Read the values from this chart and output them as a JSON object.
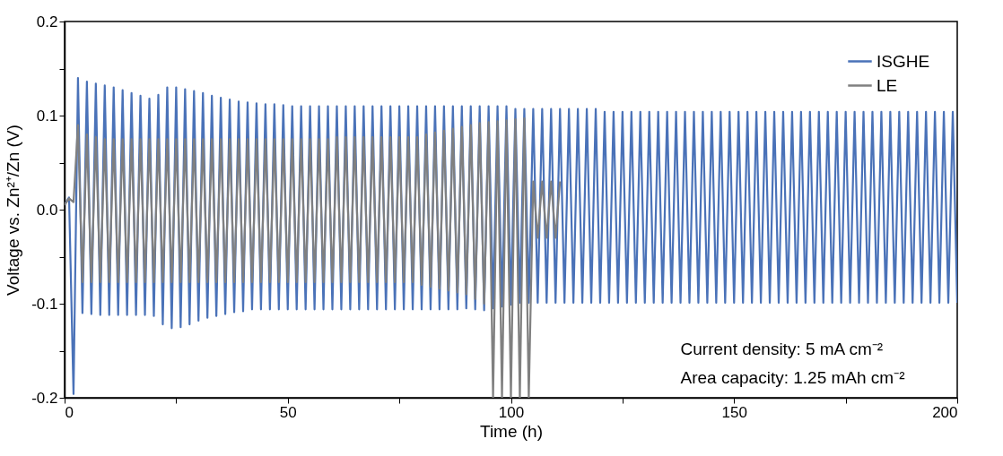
{
  "chart_data": {
    "type": "line",
    "xlabel": "Time (h)",
    "ylabel": "Voltage vs. Zn²⁺/Zn (V)",
    "xlim": [
      0,
      200
    ],
    "ylim": [
      -0.2,
      0.2
    ],
    "xticks": [
      0,
      {
        "value": 25,
        "label": null
      },
      50,
      {
        "value": 75,
        "label": null
      },
      100,
      {
        "value": 125,
        "label": null
      },
      150,
      {
        "value": 175,
        "label": null
      },
      200
    ],
    "yticks": [
      -0.2,
      {
        "value": -0.15,
        "label": null
      },
      -0.1,
      {
        "value": -0.05,
        "label": null
      },
      {
        "value": 0,
        "label": "0.0"
      },
      {
        "value": 0.05,
        "label": null
      },
      0.1,
      {
        "value": 0.15,
        "label": null
      },
      0.2
    ],
    "grid": false,
    "legend": "top right",
    "annotations": [
      "Current density: 5 mA cm⁻²",
      "Area capacity: 1.25 mAh cm⁻²"
    ],
    "series": [
      {
        "name": "ISGHE",
        "color": "#4a72b8",
        "x": [
          0,
          1,
          2,
          3,
          4,
          5,
          6,
          7,
          8,
          9,
          10,
          11,
          12,
          13,
          14,
          15,
          16,
          17,
          18,
          19,
          20,
          21,
          22,
          23,
          24,
          25,
          26,
          27,
          28,
          29,
          30,
          31,
          32,
          33,
          34,
          35,
          36,
          37,
          38,
          39,
          40,
          41,
          42,
          43,
          44,
          45,
          46,
          47,
          48,
          49,
          50,
          51,
          52,
          53,
          54,
          55,
          56,
          57,
          58,
          59,
          60,
          61,
          62,
          63,
          64,
          65,
          66,
          67,
          68,
          69,
          70,
          71,
          72,
          73,
          74,
          75,
          76,
          77,
          78,
          79,
          80,
          81,
          82,
          83,
          84,
          85,
          86,
          87,
          88,
          89,
          90,
          91,
          92,
          93,
          94,
          95,
          96,
          97,
          98,
          99,
          100,
          101,
          102,
          103,
          104,
          105,
          106,
          107,
          108,
          109,
          110,
          111,
          112,
          113,
          114,
          115,
          116,
          117,
          118,
          119,
          120,
          121,
          122,
          123,
          124,
          125,
          126,
          127,
          128,
          129,
          130,
          131,
          132,
          133,
          134,
          135,
          136,
          137,
          138,
          139,
          140,
          141,
          142,
          143,
          144,
          145,
          146,
          147,
          148,
          149,
          150,
          151,
          152,
          153,
          154,
          155,
          156,
          157,
          158,
          159,
          160,
          161,
          162,
          163,
          164,
          165,
          166,
          167,
          168,
          169,
          170,
          171,
          172,
          173,
          174,
          175,
          176,
          177,
          178,
          179,
          180,
          181,
          182,
          183,
          184,
          185,
          186,
          187,
          188,
          189,
          190,
          191,
          192,
          193,
          194,
          195,
          196,
          197,
          198,
          199,
          200
        ],
        "values": [
          0.005,
          0.013,
          -0.196,
          0.14,
          -0.11,
          0.136,
          -0.111,
          0.134,
          -0.112,
          0.132,
          -0.112,
          0.13,
          -0.112,
          0.127,
          -0.112,
          0.124,
          -0.112,
          0.121,
          -0.112,
          0.118,
          -0.113,
          0.122,
          -0.122,
          0.13,
          -0.126,
          0.13,
          -0.125,
          0.128,
          -0.122,
          0.126,
          -0.118,
          0.124,
          -0.115,
          0.121,
          -0.113,
          0.119,
          -0.111,
          0.117,
          -0.109,
          0.115,
          -0.108,
          0.114,
          -0.106,
          0.113,
          -0.106,
          0.112,
          -0.106,
          0.112,
          -0.106,
          0.111,
          -0.106,
          0.11,
          -0.106,
          0.11,
          -0.106,
          0.11,
          -0.106,
          0.11,
          -0.106,
          0.11,
          -0.106,
          0.11,
          -0.106,
          0.11,
          -0.106,
          0.11,
          -0.106,
          0.11,
          -0.106,
          0.11,
          -0.106,
          0.11,
          -0.106,
          0.11,
          -0.106,
          0.11,
          -0.106,
          0.11,
          -0.106,
          0.11,
          -0.106,
          0.11,
          -0.106,
          0.11,
          -0.106,
          0.11,
          -0.106,
          0.11,
          -0.106,
          0.11,
          -0.105,
          0.11,
          -0.106,
          0.11,
          -0.107,
          0.11,
          -0.105,
          0.11,
          -0.103,
          0.11,
          -0.101,
          0.107,
          -0.099,
          0.107,
          -0.099,
          0.107,
          -0.099,
          0.107,
          -0.099,
          0.107,
          -0.099,
          0.107,
          -0.099,
          0.107,
          -0.099,
          0.107,
          -0.099,
          0.107,
          -0.099,
          0.107,
          -0.099,
          0.104,
          -0.099,
          0.104,
          -0.099,
          0.104,
          -0.099,
          0.104,
          -0.099,
          0.104,
          -0.099,
          0.104,
          -0.099,
          0.104,
          -0.099,
          0.104,
          -0.099,
          0.104,
          -0.099,
          0.104,
          -0.099,
          0.104,
          -0.099,
          0.104,
          -0.099,
          0.104,
          -0.099,
          0.104,
          -0.099,
          0.104,
          -0.099,
          0.104,
          -0.099,
          0.104,
          -0.099,
          0.104,
          -0.099,
          0.104,
          -0.099,
          0.104,
          -0.099,
          0.104,
          -0.099,
          0.104,
          -0.099,
          0.104,
          -0.099,
          0.104,
          -0.099,
          0.104,
          -0.099,
          0.104,
          -0.099,
          0.104,
          -0.099,
          0.104,
          -0.099,
          0.104,
          -0.099,
          0.104,
          -0.099,
          0.104,
          -0.099,
          0.104,
          -0.099,
          0.104,
          -0.099,
          0.104,
          -0.099,
          0.104,
          -0.099,
          0.104,
          -0.099,
          0.104,
          -0.099,
          0.104,
          -0.099,
          0.104,
          -0.099,
          0.104,
          -0.099
        ]
      },
      {
        "name": "LE",
        "color": "#808080",
        "x": [
          0,
          1,
          2,
          3,
          4,
          5,
          6,
          7,
          8,
          9,
          10,
          11,
          12,
          13,
          14,
          15,
          16,
          17,
          18,
          19,
          20,
          21,
          22,
          23,
          24,
          25,
          26,
          27,
          28,
          29,
          30,
          31,
          32,
          33,
          34,
          35,
          36,
          37,
          38,
          39,
          40,
          41,
          42,
          43,
          44,
          45,
          46,
          47,
          48,
          49,
          50,
          51,
          52,
          53,
          54,
          55,
          56,
          57,
          58,
          59,
          60,
          61,
          62,
          63,
          64,
          65,
          66,
          67,
          68,
          69,
          70,
          71,
          72,
          73,
          74,
          75,
          76,
          77,
          78,
          79,
          80,
          81,
          82,
          83,
          84,
          85,
          86,
          87,
          88,
          89,
          90,
          91,
          92,
          93,
          94,
          95,
          96,
          97,
          98,
          99,
          100,
          101,
          102,
          103,
          104,
          105,
          106,
          107,
          108,
          109,
          110,
          111
        ],
        "values": [
          0.005,
          0.012,
          0.008,
          0.09,
          -0.077,
          0.08,
          -0.077,
          0.077,
          -0.077,
          0.075,
          -0.077,
          0.075,
          -0.077,
          0.075,
          -0.077,
          0.075,
          -0.077,
          0.075,
          -0.077,
          0.075,
          -0.077,
          0.075,
          -0.077,
          0.075,
          -0.077,
          0.075,
          -0.077,
          0.075,
          -0.077,
          0.075,
          -0.077,
          0.075,
          -0.077,
          0.075,
          -0.077,
          0.075,
          -0.077,
          0.075,
          -0.077,
          0.075,
          -0.077,
          0.075,
          -0.077,
          0.075,
          -0.077,
          0.075,
          -0.077,
          0.075,
          -0.077,
          0.075,
          -0.077,
          0.075,
          -0.077,
          0.075,
          -0.077,
          0.075,
          -0.077,
          0.075,
          -0.077,
          0.075,
          -0.077,
          0.077,
          -0.077,
          0.077,
          -0.077,
          0.077,
          -0.077,
          0.077,
          -0.077,
          0.077,
          -0.077,
          0.077,
          -0.077,
          0.077,
          -0.077,
          0.077,
          -0.077,
          0.077,
          -0.077,
          0.077,
          -0.08,
          0.08,
          -0.082,
          0.082,
          -0.084,
          0.084,
          -0.086,
          0.086,
          -0.088,
          0.088,
          -0.09,
          0.09,
          -0.095,
          0.092,
          -0.1,
          0.093,
          -0.2,
          0.094,
          -0.2,
          0.095,
          -0.2,
          0.096,
          -0.2,
          0.097,
          -0.2,
          0.03,
          -0.03,
          0.03,
          -0.03,
          0.03,
          -0.03,
          0.03
        ]
      }
    ]
  }
}
